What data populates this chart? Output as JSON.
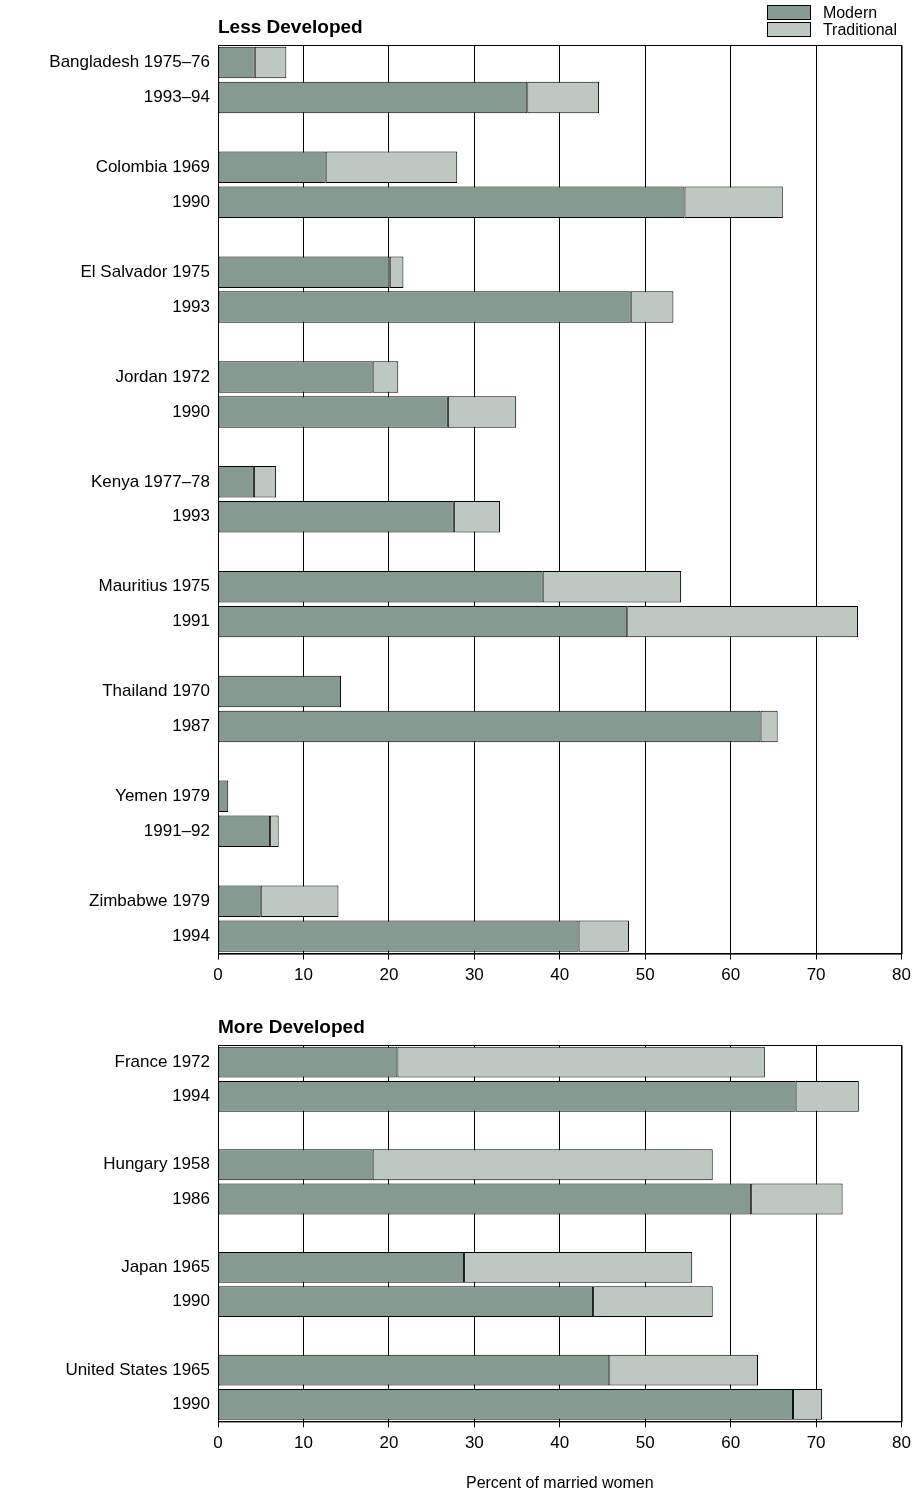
{
  "chart_data": [
    {
      "type": "bar",
      "title": "Less Developed",
      "orientation": "horizontal",
      "stacked": true,
      "grid": "x",
      "legend": "top right",
      "categories": [
        "Bangladesh 1975–76",
        "1993–94",
        null,
        "Colombia 1969",
        "1990",
        null,
        "El Salvador 1975",
        "1993",
        null,
        "Jordan 1972",
        "1990",
        null,
        "Kenya 1977–78",
        "1993",
        null,
        "Mauritius 1975",
        "1991",
        null,
        "Thailand 1970",
        "1987",
        null,
        "Yemen 1979",
        "1991–92",
        null,
        "Zimbabwe 1979",
        "1994"
      ],
      "series": [
        {
          "name": "Modern",
          "color": "#869b8f",
          "values": [
            4.3,
            36.2,
            null,
            12.6,
            54.6,
            null,
            20.1,
            48.3,
            null,
            18.1,
            26.9,
            null,
            4.2,
            27.6,
            null,
            38.0,
            47.9,
            null,
            14.4,
            63.5,
            null,
            1.2,
            6.1,
            null,
            5.0,
            42.2
          ]
        },
        {
          "name": "Traditional",
          "color": "#bdc9c0",
          "values": [
            3.7,
            8.4,
            null,
            15.4,
            11.5,
            null,
            1.6,
            5.0,
            null,
            3.0,
            8.0,
            null,
            2.6,
            5.4,
            null,
            16.2,
            27.0,
            null,
            0,
            2.0,
            null,
            0,
            1.0,
            null,
            9.1,
            5.9
          ]
        }
      ],
      "xlim": [
        0,
        80
      ],
      "xticks": [
        0,
        10,
        20,
        30,
        40,
        50,
        60,
        70,
        80
      ]
    },
    {
      "type": "bar",
      "title": "More Developed",
      "xlabel": "Percent of married women",
      "orientation": "horizontal",
      "stacked": true,
      "grid": "x",
      "categories": [
        "France 1972",
        "1994",
        null,
        "Hungary 1958",
        "1986",
        null,
        "Japan 1965",
        "1990",
        null,
        "United States 1965",
        "1990"
      ],
      "series": [
        {
          "color": "#869b8f",
          "values": [
            21.0,
            67.6,
            null,
            18.1,
            62.4,
            null,
            28.8,
            43.9,
            null,
            45.8,
            67.3
          ]
        },
        {
          "color": "#bdc9c0",
          "values": [
            43.0,
            7.4,
            null,
            39.8,
            10.7,
            null,
            26.7,
            14.0,
            null,
            17.4,
            3.4
          ]
        }
      ],
      "xlim": [
        0,
        80
      ],
      "xticks": [
        0,
        10,
        20,
        30,
        40,
        50,
        60,
        70,
        80
      ]
    }
  ]
}
